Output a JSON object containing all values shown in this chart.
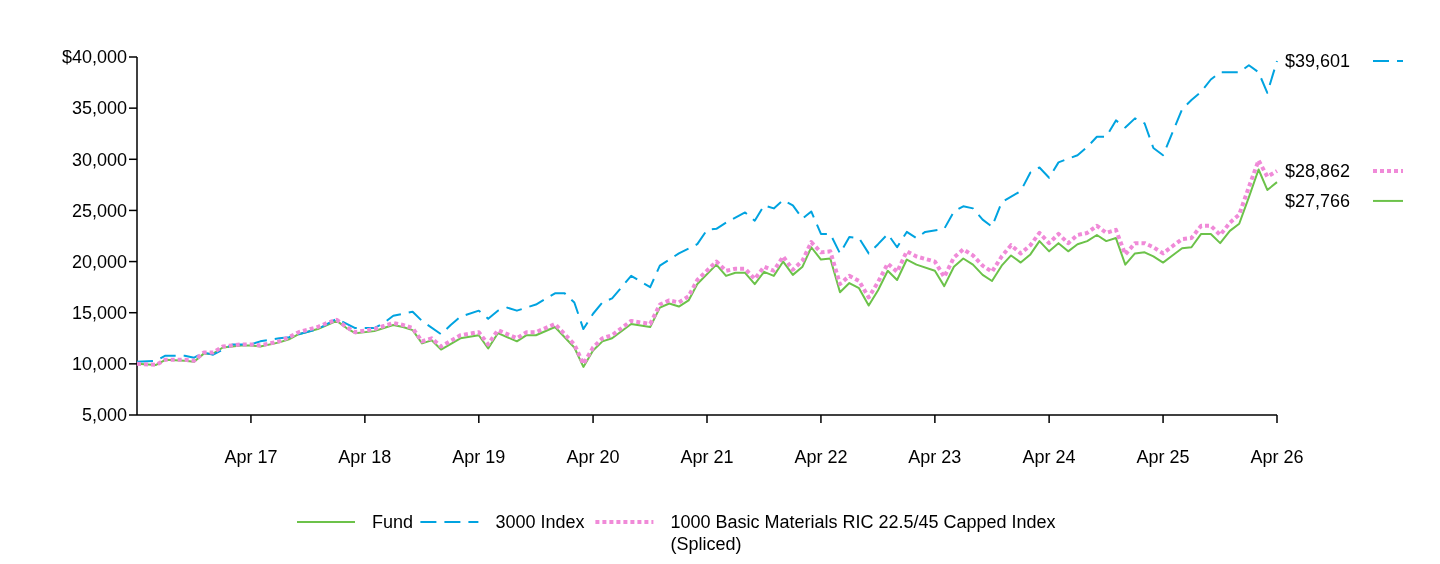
{
  "chart_data": {
    "type": "line",
    "xlim": [
      "2016-04",
      "2026-04"
    ],
    "ylim": [
      5000,
      40000
    ],
    "xticks": [
      {
        "value": "2017-04",
        "label": "Apr 17"
      },
      {
        "value": "2018-04",
        "label": "Apr 18"
      },
      {
        "value": "2019-04",
        "label": "Apr 19"
      },
      {
        "value": "2020-04",
        "label": "Apr 20"
      },
      {
        "value": "2021-04",
        "label": "Apr 21"
      },
      {
        "value": "2022-04",
        "label": "Apr 22"
      },
      {
        "value": "2023-04",
        "label": "Apr 23"
      },
      {
        "value": "2024-04",
        "label": "Apr 24"
      },
      {
        "value": "2025-04",
        "label": "Apr 25"
      },
      {
        "value": "2026-04",
        "label": "Apr 26"
      }
    ],
    "yticks": [
      {
        "value": 5000,
        "label": "5,000"
      },
      {
        "value": 10000,
        "label": "10,000"
      },
      {
        "value": 15000,
        "label": "15,000"
      },
      {
        "value": 20000,
        "label": "20,000"
      },
      {
        "value": 25000,
        "label": "25,000"
      },
      {
        "value": 30000,
        "label": "30,000"
      },
      {
        "value": 35000,
        "label": "35,000"
      },
      {
        "value": 40000,
        "label": "$40,000"
      }
    ],
    "x": [
      "2016-04",
      "2016-06",
      "2016-07",
      "2016-09",
      "2016-10",
      "2016-11",
      "2016-12",
      "2017-01",
      "2017-03",
      "2017-04",
      "2017-05",
      "2017-07",
      "2017-08",
      "2017-09",
      "2017-11",
      "2017-12",
      "2018-01",
      "2018-02",
      "2018-03",
      "2018-05",
      "2018-06",
      "2018-07",
      "2018-08",
      "2018-09",
      "2018-10",
      "2018-11",
      "2018-12",
      "2019-02",
      "2019-04",
      "2019-05",
      "2019-06",
      "2019-08",
      "2019-09",
      "2019-10",
      "2019-12",
      "2020-02",
      "2020-03",
      "2020-04",
      "2020-05",
      "2020-06",
      "2020-08",
      "2020-10",
      "2020-11",
      "2020-12",
      "2021-01",
      "2021-02",
      "2021-03",
      "2021-05",
      "2021-06",
      "2021-07",
      "2021-08",
      "2021-09",
      "2021-10",
      "2021-11",
      "2021-12",
      "2022-01",
      "2022-02",
      "2022-03",
      "2022-04",
      "2022-05",
      "2022-06",
      "2022-07",
      "2022-08",
      "2022-09",
      "2022-10",
      "2022-11",
      "2022-12",
      "2023-01",
      "2023-02",
      "2023-04",
      "2023-05",
      "2023-06",
      "2023-07",
      "2023-08",
      "2023-09",
      "2023-10",
      "2023-11",
      "2023-12",
      "2024-01",
      "2024-02",
      "2024-03",
      "2024-04",
      "2024-05",
      "2024-06",
      "2024-07",
      "2024-08",
      "2024-09",
      "2024-10",
      "2024-11",
      "2024-12",
      "2025-01",
      "2025-02",
      "2025-03",
      "2025-04",
      "2025-05",
      "2025-06",
      "2025-07",
      "2025-08",
      "2025-09",
      "2025-10",
      "2025-11",
      "2025-12",
      "2026-01",
      "2026-02",
      "2026-03",
      "2026-04"
    ],
    "series": [
      {
        "name": "Fund",
        "color": "#6cc24a",
        "line_style": "solid",
        "values": [
          10000,
          9900,
          10400,
          10300,
          10200,
          11000,
          11000,
          11600,
          11800,
          11800,
          11700,
          12100,
          12400,
          12900,
          13400,
          13800,
          14200,
          13500,
          13000,
          13200,
          13500,
          13800,
          13600,
          13300,
          12000,
          12300,
          11400,
          12500,
          12800,
          11500,
          13000,
          12200,
          12800,
          12800,
          13600,
          11600,
          9700,
          11300,
          12200,
          12500,
          13900,
          13600,
          15500,
          15900,
          15600,
          16200,
          17800,
          19700,
          18600,
          18900,
          18900,
          17800,
          19000,
          18600,
          20000,
          18700,
          19500,
          21400,
          20200,
          20300,
          17000,
          17900,
          17400,
          15700,
          17200,
          19100,
          18200,
          20200,
          19700,
          19100,
          17600,
          19500,
          20300,
          19700,
          18700,
          18100,
          19600,
          20600,
          19900,
          20700,
          22000,
          21000,
          21800,
          21000,
          21700,
          22000,
          22600,
          22000,
          22300,
          19700,
          20800,
          20900,
          20500,
          19900,
          20600,
          21300,
          21400,
          22700,
          22700,
          21800,
          23000,
          23700,
          26300,
          29000,
          27000,
          27766
        ]
      },
      {
        "name": "3000 Index",
        "color": "#00a3e0",
        "line_style": "dashed",
        "x": [
          "2016-04",
          "2016-06",
          "2016-07",
          "2016-09",
          "2016-10",
          "2016-11",
          "2016-12",
          "2017-02",
          "2017-04",
          "2017-05",
          "2017-07",
          "2017-08",
          "2017-09",
          "2017-11",
          "2018-01",
          "2018-03",
          "2018-05",
          "2018-06",
          "2018-07",
          "2018-09",
          "2018-10",
          "2018-12",
          "2019-01",
          "2019-02",
          "2019-04",
          "2019-05",
          "2019-06",
          "2019-07",
          "2019-08",
          "2019-10",
          "2019-12",
          "2020-01",
          "2020-02",
          "2020-03",
          "2020-04",
          "2020-05",
          "2020-06",
          "2020-08",
          "2020-10",
          "2020-11",
          "2021-01",
          "2021-03",
          "2021-04",
          "2021-05",
          "2021-06",
          "2021-07",
          "2021-08",
          "2021-09",
          "2021-10",
          "2021-11",
          "2021-12",
          "2022-01",
          "2022-02",
          "2022-03",
          "2022-04",
          "2022-05",
          "2022-06",
          "2022-07",
          "2022-08",
          "2022-09",
          "2022-10",
          "2022-11",
          "2022-12",
          "2023-01",
          "2023-02",
          "2023-03",
          "2023-05",
          "2023-06",
          "2023-07",
          "2023-08",
          "2023-09",
          "2023-10",
          "2023-11",
          "2024-01",
          "2024-02",
          "2024-03",
          "2024-04",
          "2024-05",
          "2024-07",
          "2024-08",
          "2024-09",
          "2024-10",
          "2024-11",
          "2024-12",
          "2025-01",
          "2025-02",
          "2025-03",
          "2025-04",
          "2025-05",
          "2025-06",
          "2025-07",
          "2025-08",
          "2025-09",
          "2025-10",
          "2025-12",
          "2026-01",
          "2026-02",
          "2026-03",
          "2026-04"
        ],
        "values": [
          10200,
          10300,
          10800,
          10800,
          10600,
          11100,
          10900,
          11900,
          11900,
          12200,
          12500,
          12600,
          12900,
          13400,
          14400,
          13500,
          13500,
          14000,
          14700,
          15100,
          14200,
          12900,
          13800,
          14600,
          15200,
          14400,
          15200,
          15500,
          15200,
          15800,
          16900,
          16900,
          16000,
          13400,
          14900,
          16000,
          16400,
          18600,
          17500,
          19600,
          20800,
          21700,
          23100,
          23200,
          23800,
          24300,
          24800,
          24000,
          25500,
          25200,
          26000,
          25500,
          24200,
          24900,
          22700,
          22700,
          20800,
          22400,
          22300,
          20800,
          21700,
          22700,
          21400,
          22900,
          22300,
          22900,
          23200,
          24900,
          25400,
          25200,
          24100,
          23400,
          25800,
          26900,
          28700,
          29200,
          28200,
          29700,
          30400,
          31200,
          32200,
          32200,
          33800,
          33100,
          34000,
          33500,
          31100,
          30400,
          32600,
          34900,
          35800,
          36600,
          37800,
          38500,
          38500,
          39200,
          38500,
          36500,
          39601
        ]
      },
      {
        "name": "1000 Basic Materials RIC 22.5/45 Capped Index (Spliced)",
        "color": "#f08ad8",
        "line_style": "dotted",
        "values": [
          10000,
          9900,
          10400,
          10400,
          10300,
          11100,
          11100,
          11700,
          11900,
          11900,
          11800,
          12200,
          12600,
          13100,
          13600,
          14000,
          14300,
          13600,
          13100,
          13400,
          13700,
          14000,
          13800,
          13500,
          12200,
          12500,
          11700,
          12800,
          13100,
          11900,
          13300,
          12500,
          13100,
          13100,
          13900,
          11900,
          10000,
          11600,
          12500,
          12800,
          14200,
          13900,
          15800,
          16200,
          16000,
          16600,
          18200,
          20000,
          19100,
          19300,
          19300,
          18300,
          19500,
          19100,
          20500,
          19200,
          20100,
          21900,
          20900,
          21000,
          17800,
          18600,
          18100,
          16500,
          18000,
          19800,
          19000,
          21000,
          20500,
          20000,
          18500,
          20400,
          21200,
          20600,
          19600,
          19000,
          20500,
          21600,
          20800,
          21600,
          22800,
          21800,
          22700,
          21800,
          22600,
          22800,
          23500,
          22800,
          23100,
          20700,
          21800,
          21800,
          21400,
          20800,
          21500,
          22200,
          22300,
          23500,
          23500,
          22600,
          23800,
          24600,
          27300,
          29900,
          28300,
          28862
        ]
      }
    ],
    "annotations": [
      {
        "text": "$39,601",
        "x": "2026-04",
        "y": 39601
      },
      {
        "text": "$28,862",
        "x": "2026-04",
        "y": 28862
      },
      {
        "text": "$27,766",
        "x": "2026-04",
        "y": 27766
      }
    ],
    "legend": "bottom"
  }
}
